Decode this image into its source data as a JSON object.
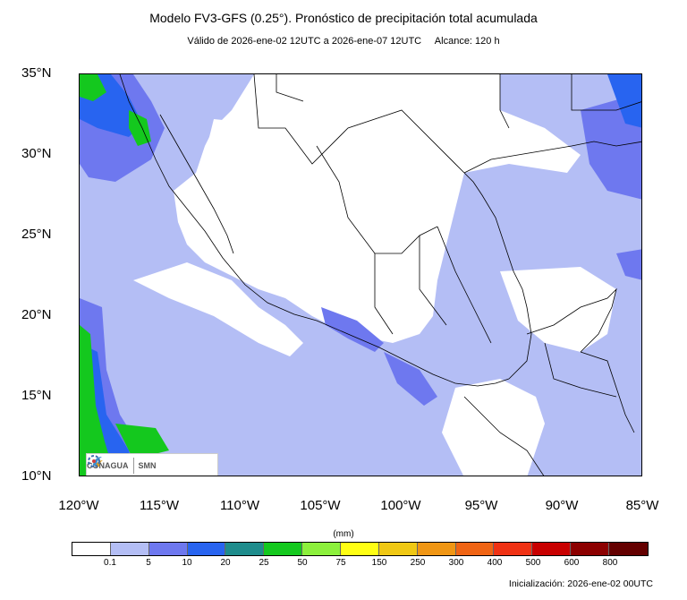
{
  "title": "Modelo FV3-GFS (0.25°). Pronóstico de precipitación total acumulada",
  "subtitle": "Válido de 2026-ene-02 12UTC a 2026-ene-07 12UTC     Alcance: 120 h",
  "lat_labels": [
    "35°N",
    "30°N",
    "25°N",
    "20°N",
    "15°N",
    "10°N"
  ],
  "lon_labels": [
    "120°W",
    "115°W",
    "110°W",
    "105°W",
    "100°W",
    "95°W",
    "90°W",
    "85°W"
  ],
  "legend": {
    "unit": "(mm)",
    "colors": [
      "#ffffff",
      "#b4bef5",
      "#6e78ef",
      "#2864f0",
      "#1e8c8c",
      "#14c81e",
      "#8cf03c",
      "#ffff14",
      "#f0c814",
      "#f09614",
      "#f06414",
      "#f03214",
      "#c80000",
      "#8c0000",
      "#640000"
    ],
    "ticks": [
      "0.1",
      "5",
      "10",
      "20",
      "25",
      "50",
      "75",
      "150",
      "250",
      "300",
      "400",
      "500",
      "600",
      "800"
    ]
  },
  "initialization": "Inicialización: 2026-ene-02 00UTC",
  "logos": {
    "conagua": "CONAGUA",
    "smn": "SMN"
  }
}
